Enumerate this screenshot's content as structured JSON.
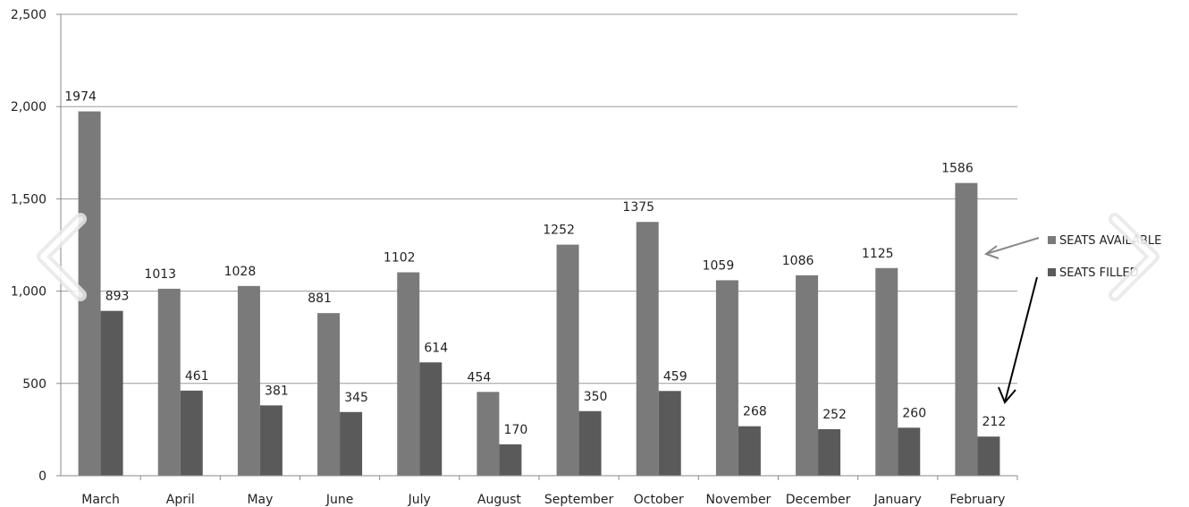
{
  "chart_data": {
    "type": "bar",
    "categories": [
      "March",
      "April",
      "May",
      "June",
      "July",
      "August",
      "September",
      "October",
      "November",
      "December",
      "January",
      "February"
    ],
    "series": [
      {
        "name": "SEATS AVAILABLE",
        "color": "#7a7a7a",
        "values": [
          1974,
          1013,
          1028,
          881,
          1102,
          454,
          1252,
          1375,
          1059,
          1086,
          1125,
          1586
        ]
      },
      {
        "name": "SEATS FILLED",
        "color": "#5a5a5a",
        "values": [
          893,
          461,
          381,
          345,
          614,
          170,
          350,
          459,
          268,
          252,
          260,
          212
        ]
      }
    ],
    "data_labels": {
      "SEATS AVAILABLE": [
        "1974",
        "1013",
        "1028",
        "881",
        "1102",
        "454",
        "1252",
        "1375",
        "1059",
        "1086",
        "1125",
        "1586"
      ],
      "SEATS FILLED": [
        "893",
        "461",
        "381",
        "345",
        "614",
        "170",
        "350",
        "459",
        "268",
        "252",
        "260",
        "212"
      ]
    },
    "ylim": [
      0,
      2500
    ],
    "yticks": [
      0,
      500,
      1000,
      1500,
      2000,
      2500
    ],
    "ytick_labels": [
      "0",
      "500",
      "1,000",
      "1,500",
      "2,000",
      "2,500"
    ],
    "grid": true,
    "legend_position": "right",
    "title": "",
    "xlabel": "",
    "ylabel": ""
  },
  "legend": {
    "items": [
      {
        "label": "SEATS AVAILABLE",
        "color": "#7a7a7a"
      },
      {
        "label": "SEATS FILLED",
        "color": "#5a5a5a"
      }
    ]
  },
  "navigation": {
    "prev_icon": "chevron-left-icon",
    "next_icon": "chevron-right-icon"
  }
}
